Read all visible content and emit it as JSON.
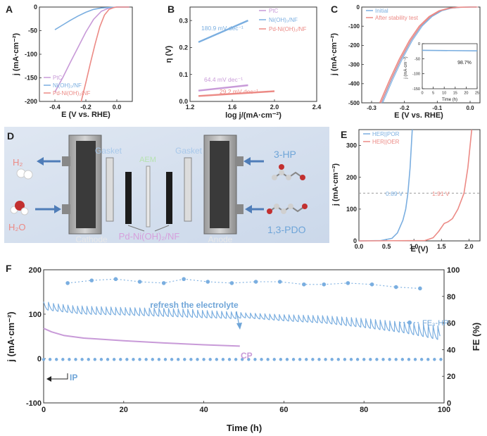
{
  "chart_data": [
    {
      "panel": "A",
      "type": "line",
      "xlabel": "E (V vs. RHE)",
      "ylabel": "j (mA·cm⁻²)",
      "xlim": [
        -0.5,
        0.1
      ],
      "ylim": [
        -200,
        0
      ],
      "xticks": [
        "-0.4",
        "-0.2",
        "0.0"
      ],
      "yticks": [
        "0",
        "-50",
        "-100",
        "-150",
        "-200"
      ],
      "series": [
        {
          "name": "PtC",
          "color": "#c89ad8",
          "points": [
            [
              -0.4,
              -180
            ],
            [
              -0.35,
              -150
            ],
            [
              -0.3,
              -117
            ],
            [
              -0.25,
              -85
            ],
            [
              -0.2,
              -53
            ],
            [
              -0.15,
              -26
            ],
            [
              -0.1,
              -9
            ],
            [
              -0.05,
              -2
            ],
            [
              0.0,
              0
            ],
            [
              0.08,
              0
            ]
          ]
        },
        {
          "name": "Ni(OH)₂/NF",
          "color": "#7aaee0",
          "points": [
            [
              -0.4,
              -48
            ],
            [
              -0.35,
              -38
            ],
            [
              -0.3,
              -28
            ],
            [
              -0.25,
              -19
            ],
            [
              -0.2,
              -11
            ],
            [
              -0.15,
              -5
            ],
            [
              -0.1,
              -2
            ],
            [
              -0.05,
              -1
            ],
            [
              0.0,
              0
            ],
            [
              0.08,
              0
            ]
          ]
        },
        {
          "name": "Pd-Ni(OH)₂/NF",
          "color": "#ec8a85",
          "points": [
            [
              -0.23,
              -200
            ],
            [
              -0.2,
              -160
            ],
            [
              -0.17,
              -118
            ],
            [
              -0.14,
              -78
            ],
            [
              -0.11,
              -42
            ],
            [
              -0.08,
              -17
            ],
            [
              -0.05,
              -5
            ],
            [
              -0.02,
              -1
            ],
            [
              0.0,
              0
            ],
            [
              0.08,
              0
            ]
          ]
        }
      ],
      "legend": "bottom-left"
    },
    {
      "panel": "B",
      "type": "line",
      "xlabel": "log j/(mA·cm⁻²)",
      "ylabel": "η (V)",
      "xlim": [
        1.2,
        2.4
      ],
      "ylim": [
        0,
        0.35
      ],
      "xticks": [
        "1.2",
        "1.6",
        "2.0",
        "2.4"
      ],
      "yticks": [
        "0.0",
        "0.1",
        "0.2",
        "0.3"
      ],
      "series": [
        {
          "name": "PtC",
          "color": "#c89ad8",
          "annotation": "64.4 mV dec⁻¹",
          "points": [
            [
              1.28,
              0.04
            ],
            [
              1.75,
              0.06
            ]
          ]
        },
        {
          "name": "Ni(OH)₂/NF",
          "color": "#7aaee0",
          "annotation": "180.9 mV dec⁻¹",
          "points": [
            [
              1.28,
              0.22
            ],
            [
              1.75,
              0.3
            ]
          ]
        },
        {
          "name": "Pd-Ni(OH)₂/NF",
          "color": "#ec8a85",
          "annotation": "29.2 mV dec⁻¹",
          "points": [
            [
              1.28,
              0.02
            ],
            [
              2.0,
              0.038
            ]
          ]
        }
      ],
      "legend": "top-right"
    },
    {
      "panel": "C",
      "type": "line",
      "xlabel": "E (V vs. RHE)",
      "ylabel": "j (mA·cm⁻²)",
      "xlim": [
        -0.33,
        0.03
      ],
      "ylim": [
        -500,
        0
      ],
      "xticks": [
        "-0.3",
        "-0.2",
        "-0.1",
        "0.0"
      ],
      "yticks": [
        "0",
        "-100",
        "-200",
        "-300",
        "-400",
        "-500"
      ],
      "series": [
        {
          "name": "Initial",
          "color": "#7aaee0",
          "points": [
            [
              -0.27,
              -500
            ],
            [
              -0.24,
              -380
            ],
            [
              -0.21,
              -270
            ],
            [
              -0.18,
              -175
            ],
            [
              -0.15,
              -100
            ],
            [
              -0.12,
              -50
            ],
            [
              -0.09,
              -20
            ],
            [
              -0.06,
              -6
            ],
            [
              -0.03,
              -1
            ],
            [
              0.0,
              0
            ],
            [
              0.02,
              0
            ]
          ]
        },
        {
          "name": "After stability test",
          "color": "#ec8a85",
          "points": [
            [
              -0.275,
              -500
            ],
            [
              -0.245,
              -380
            ],
            [
              -0.215,
              -270
            ],
            [
              -0.185,
              -175
            ],
            [
              -0.155,
              -100
            ],
            [
              -0.125,
              -50
            ],
            [
              -0.095,
              -20
            ],
            [
              -0.065,
              -6
            ],
            [
              -0.035,
              -1
            ],
            [
              0.0,
              0
            ],
            [
              0.02,
              0
            ]
          ]
        }
      ],
      "legend": "top-left",
      "inset": {
        "xlabel": "Time (h)",
        "ylabel": "j (mA·cm⁻²)",
        "xlim": [
          0,
          25
        ],
        "ylim": [
          -150,
          0
        ],
        "xticks": [
          "0",
          "5",
          "10",
          "15",
          "20",
          "25"
        ],
        "yticks": [
          "0",
          "-50",
          "-100",
          "-150"
        ],
        "annotation": "98.7%",
        "points": [
          [
            0,
            -22
          ],
          [
            25,
            -24
          ]
        ]
      }
    },
    {
      "panel": "E",
      "type": "line",
      "xlabel": "E (V)",
      "ylabel": "j (mA·cm⁻²)",
      "xlim": [
        0,
        2.2
      ],
      "ylim": [
        0,
        350
      ],
      "xticks": [
        "0.0",
        "0.5",
        "1.0",
        "1.5",
        "2.0"
      ],
      "yticks": [
        "0",
        "100",
        "200",
        "300"
      ],
      "reference_line": 150,
      "series": [
        {
          "name": "HER||POR",
          "color": "#7aaee0",
          "annotation": "0.89 V",
          "points": [
            [
              0,
              0
            ],
            [
              0.4,
              1
            ],
            [
              0.6,
              8
            ],
            [
              0.7,
              25
            ],
            [
              0.8,
              65
            ],
            [
              0.85,
              100
            ],
            [
              0.89,
              150
            ],
            [
              0.93,
              230
            ],
            [
              0.97,
              350
            ]
          ]
        },
        {
          "name": "HER||OER",
          "color": "#ec8a85",
          "annotation": "1.91 V",
          "points": [
            [
              0,
              0
            ],
            [
              1.2,
              1
            ],
            [
              1.35,
              10
            ],
            [
              1.45,
              30
            ],
            [
              1.55,
              55
            ],
            [
              1.62,
              60
            ],
            [
              1.7,
              70
            ],
            [
              1.8,
              100
            ],
            [
              1.91,
              150
            ],
            [
              1.98,
              230
            ],
            [
              2.05,
              350
            ]
          ]
        }
      ],
      "legend": "top-left"
    },
    {
      "panel": "F",
      "type": "line",
      "xlabel": "Time (h)",
      "ylabel": "j (mA·cm⁻²)",
      "ylabel_right": "FE (%)",
      "xlim": [
        0,
        100
      ],
      "ylim": [
        -100,
        200
      ],
      "ylim_right": [
        0,
        100
      ],
      "xticks": [
        "0",
        "20",
        "40",
        "60",
        "80",
        "100"
      ],
      "yticks": [
        "-100",
        "0",
        "100",
        "200"
      ],
      "yticks_right": [
        "0",
        "20",
        "40",
        "60",
        "80",
        "100"
      ],
      "annotation": "refresh the electrolyte",
      "refresh_time": 49,
      "series": [
        {
          "name": "IP",
          "color": "#7aaee0",
          "points": [
            [
              0,
              -2
            ],
            [
              100,
              -2
            ]
          ]
        },
        {
          "name": "CP",
          "color": "#c89ad8",
          "points": [
            [
              0,
              68
            ],
            [
              2,
              60
            ],
            [
              5,
              52
            ],
            [
              10,
              46
            ],
            [
              20,
              40
            ],
            [
              30,
              35
            ],
            [
              40,
              31
            ],
            [
              49,
              28
            ]
          ]
        },
        {
          "name": "FE3-HP",
          "axis": "right",
          "color": "#7aaee0",
          "points": [
            [
              6,
              90
            ],
            [
              12,
              92
            ],
            [
              18,
              93
            ],
            [
              24,
              91
            ],
            [
              30,
              90
            ],
            [
              35,
              93
            ],
            [
              41,
              91
            ],
            [
              47,
              90
            ],
            [
              53,
              91
            ],
            [
              59,
              91
            ],
            [
              65,
              89
            ],
            [
              70,
              89
            ],
            [
              76,
              90
            ],
            [
              82,
              89
            ],
            [
              88,
              87
            ],
            [
              94,
              86
            ]
          ]
        }
      ],
      "envelope_upper": [
        [
          0,
          128
        ],
        [
          10,
          118
        ],
        [
          20,
          115
        ],
        [
          30,
          113
        ],
        [
          40,
          110
        ],
        [
          48,
          106
        ],
        [
          50,
          104
        ],
        [
          60,
          100
        ],
        [
          70,
          98
        ],
        [
          80,
          92
        ],
        [
          90,
          84
        ],
        [
          99,
          76
        ]
      ],
      "envelope_lower": [
        [
          0,
          110
        ],
        [
          10,
          100
        ],
        [
          20,
          98
        ],
        [
          30,
          95
        ],
        [
          40,
          92
        ],
        [
          48,
          90
        ],
        [
          50,
          92
        ],
        [
          60,
          85
        ],
        [
          70,
          80
        ],
        [
          80,
          70
        ],
        [
          90,
          58
        ],
        [
          99,
          42
        ]
      ]
    }
  ],
  "panel_letters": {
    "a": "A",
    "b": "B",
    "c": "C",
    "d": "D",
    "e": "E",
    "f": "F"
  },
  "text": {
    "a": {
      "leg1": "PtC",
      "leg2": "Ni(OH)₂/NF",
      "leg3": "Pd-Ni(OH)₂/NF",
      "xl": "E (V vs. RHE)",
      "yl": "j (mA·cm⁻²)"
    },
    "b": {
      "leg1": "PtC",
      "leg2": "Ni(OH)₂/NF",
      "leg3": "Pd-Ni(OH)₂/NF",
      "ann1": "180.9 mV dec⁻¹",
      "ann2": "64.4 mV dec⁻¹",
      "ann3": "29.2 mV dec⁻¹",
      "xl": "log j/(mA·cm⁻²)",
      "yl": "η (V)"
    },
    "c": {
      "leg1": "Initial",
      "leg2": "After stability test",
      "inset_ann": "98.7%",
      "inset_xl": "Time (h)",
      "inset_yl": "j (mA·cm⁻²)",
      "xl": "E (V vs. RHE)",
      "yl": "j (mA·cm⁻²)"
    },
    "d": {
      "h2": "H₂",
      "h2o": "H₂O",
      "gasket_l": "Gasket",
      "aem": "AEM",
      "gasket_r": "Gasket",
      "hp": "3-HP",
      "pdo": "1,3-PDO",
      "cathode": "Cathode",
      "anode": "Anode",
      "catalyst": "Pd-Ni(OH)₂/NF"
    },
    "e": {
      "leg1": "HER||POR",
      "leg2": "HER||OER",
      "ann1": "0.89 V",
      "ann2": "1.91 V",
      "xl": "E (V)",
      "yl": "j (mA·cm⁻²)"
    },
    "f": {
      "refresh": "refresh the electrolyte",
      "cp": "CP",
      "ip": "IP",
      "fe": "FE₃-HP",
      "xl": "Time (h)",
      "yl": "j (mA·cm⁻²)",
      "yr": "FE (%)"
    }
  }
}
